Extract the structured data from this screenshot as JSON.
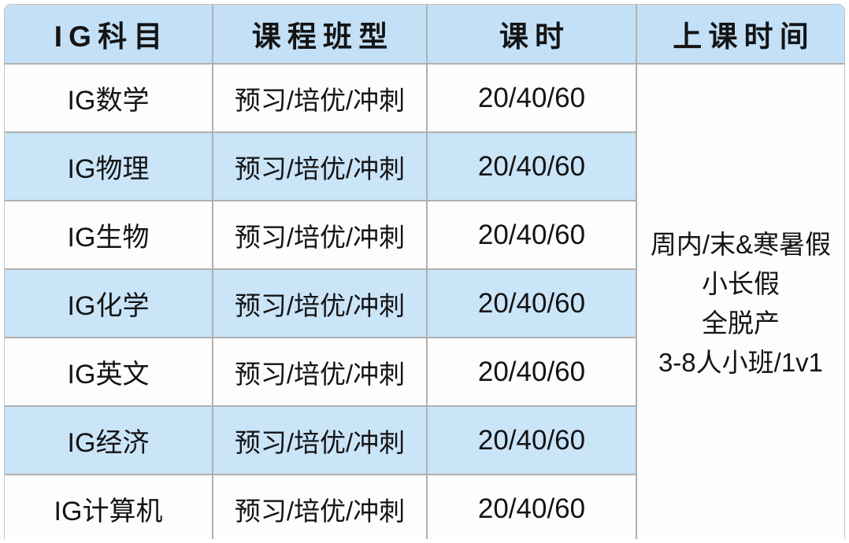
{
  "table": {
    "headers": [
      "IG科目",
      "课程班型",
      "课时",
      "上课时间"
    ],
    "rows": [
      {
        "subject": "IG数学",
        "class_type": "预习/培优/冲刺",
        "hours": "20/40/60"
      },
      {
        "subject": "IG物理",
        "class_type": "预习/培优/冲刺",
        "hours": "20/40/60"
      },
      {
        "subject": "IG生物",
        "class_type": "预习/培优/冲刺",
        "hours": "20/40/60"
      },
      {
        "subject": "IG化学",
        "class_type": "预习/培优/冲刺",
        "hours": "20/40/60"
      },
      {
        "subject": "IG英文",
        "class_type": "预习/培优/冲刺",
        "hours": "20/40/60"
      },
      {
        "subject": "IG经济",
        "class_type": "预习/培优/冲刺",
        "hours": "20/40/60"
      },
      {
        "subject": "IG计算机",
        "class_type": "预习/培优/冲刺",
        "hours": "20/40/60"
      }
    ],
    "schedule_lines": [
      "周内/末&寒暑假",
      "小长假",
      "全脱产",
      "3-8人小班/1v1"
    ]
  },
  "colors": {
    "header_bg": "#c4e0f6",
    "alt_row_bg": "#cae4f8",
    "row_bg": "#fdfdfd",
    "grid_line": "#b0b0b0",
    "text": "#141414"
  }
}
